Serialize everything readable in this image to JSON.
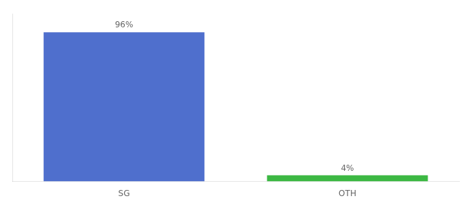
{
  "chart_data": {
    "type": "bar",
    "categories": [
      "SG",
      "OTH"
    ],
    "values": [
      96,
      4
    ],
    "value_labels": [
      "96%",
      "4%"
    ],
    "colors": [
      "#4f6fcd",
      "#3cb843"
    ],
    "data_labels": true,
    "ylim": [
      0,
      108
    ],
    "tick_labels": "x",
    "grid": false
  }
}
